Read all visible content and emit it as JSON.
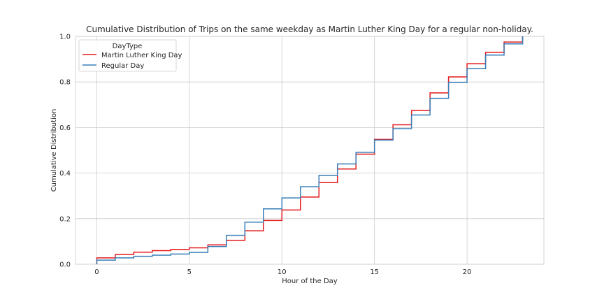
{
  "chart_data": {
    "type": "line",
    "drawstyle": "steps-post",
    "title": "Cumulative Distribution of Trips on the same weekday as Martin Luther King Day for a regular non-holiday.",
    "xlabel": "Hour of the Day",
    "ylabel": "Cumulative Distribution",
    "xlim": [
      -1.15,
      24.15
    ],
    "ylim": [
      0,
      1.0
    ],
    "xticks": [
      0,
      5,
      10,
      15,
      20
    ],
    "yticks": [
      0.0,
      0.2,
      0.4,
      0.6,
      0.8,
      1.0
    ],
    "ytick_labels": [
      "0.0",
      "0.2",
      "0.4",
      "0.6",
      "0.8",
      "1.0"
    ],
    "grid": true,
    "legend": {
      "title": "DayType",
      "position": "top-left"
    },
    "x": [
      0,
      1,
      2,
      3,
      4,
      5,
      6,
      7,
      8,
      9,
      10,
      11,
      12,
      13,
      14,
      15,
      16,
      17,
      18,
      19,
      20,
      21,
      22,
      23
    ],
    "series": [
      {
        "name": "Martin Luther King Day",
        "color": "#e41a1c",
        "values": [
          0.028,
          0.043,
          0.053,
          0.06,
          0.065,
          0.072,
          0.085,
          0.105,
          0.147,
          0.192,
          0.238,
          0.295,
          0.358,
          0.418,
          0.483,
          0.548,
          0.612,
          0.675,
          0.752,
          0.822,
          0.88,
          0.93,
          0.975,
          1.0
        ]
      },
      {
        "name": "Regular Day",
        "color": "#377eb8",
        "values": [
          0.018,
          0.028,
          0.035,
          0.04,
          0.045,
          0.052,
          0.078,
          0.127,
          0.185,
          0.243,
          0.291,
          0.34,
          0.39,
          0.44,
          0.491,
          0.545,
          0.595,
          0.655,
          0.728,
          0.798,
          0.858,
          0.918,
          0.967,
          1.0
        ]
      }
    ]
  }
}
